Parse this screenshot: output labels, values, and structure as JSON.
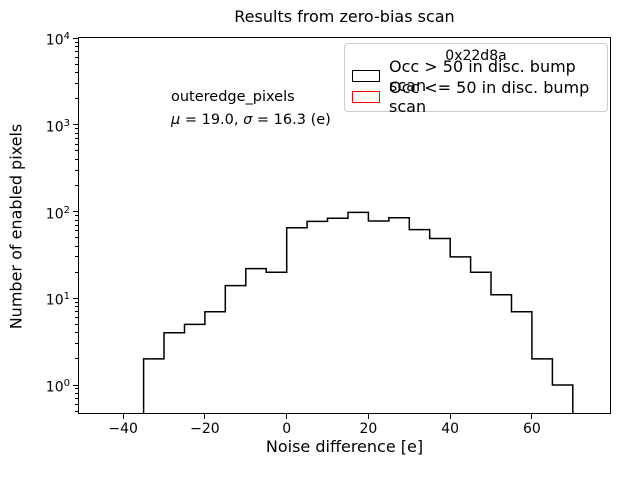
{
  "figure": {
    "title": "Results from zero-bias scan"
  },
  "axes": {
    "xlabel": "Noise difference [e]",
    "ylabel": "Number of enabled pixels",
    "x_ticks": [
      {
        "value": -40,
        "label": "−40"
      },
      {
        "value": -20,
        "label": "−20"
      },
      {
        "value": 0,
        "label": "0"
      },
      {
        "value": 20,
        "label": "20"
      },
      {
        "value": 40,
        "label": "40"
      },
      {
        "value": 60,
        "label": "60"
      }
    ],
    "y_ticks": [
      {
        "base": "10",
        "exp": "0",
        "value": 1
      },
      {
        "base": "10",
        "exp": "1",
        "value": 10
      },
      {
        "base": "10",
        "exp": "2",
        "value": 100
      },
      {
        "base": "10",
        "exp": "3",
        "value": 1000
      },
      {
        "base": "10",
        "exp": "4",
        "value": 10000
      }
    ]
  },
  "annotation": {
    "name": "outeredge_pixels",
    "mu_symbol": "μ",
    "mu_rest": " = 19.0, ",
    "sigma_symbol": "σ",
    "sigma_rest": " = 16.3 (e)"
  },
  "legend": {
    "title": "0x22d8a",
    "entries": [
      {
        "label": "Occ > 50 in disc. bump scan",
        "color": "#000000"
      },
      {
        "label": "Occ <= 50 in disc. bump scan",
        "color": "#ff0000"
      }
    ]
  },
  "chart_data": {
    "type": "bar",
    "variant": "step-histogram-outline",
    "title": "Results from zero-bias scan",
    "xlabel": "Noise difference [e]",
    "ylabel": "Number of enabled pixels",
    "yscale": "log",
    "xlim": [
      -50.8,
      79.1
    ],
    "ylim": [
      0.47,
      10000
    ],
    "x_ticks": [
      -40,
      -20,
      0,
      20,
      40,
      60
    ],
    "y_ticks": [
      1,
      10,
      100,
      1000,
      10000
    ],
    "grid": false,
    "legend_position": "upper right",
    "bin_width": 5,
    "series": [
      {
        "name": "Occ > 50 in disc. bump scan",
        "color": "#000000",
        "bin_edges": [
          -35,
          -30,
          -25,
          -20,
          -15,
          -10,
          -5,
          0,
          5,
          10,
          15,
          20,
          25,
          30,
          35,
          40,
          45,
          50,
          55,
          60,
          65,
          70
        ],
        "counts": [
          2,
          4,
          5,
          7,
          14,
          22,
          20,
          65,
          77,
          84,
          98,
          78,
          85,
          62,
          49,
          30,
          20,
          11,
          7,
          2,
          1
        ]
      },
      {
        "name": "Occ <= 50 in disc. bump scan",
        "color": "#ff0000",
        "bin_edges": [],
        "counts": []
      }
    ],
    "stats": {
      "label": "outeredge_pixels",
      "mu": 19.0,
      "sigma": 16.3
    }
  }
}
